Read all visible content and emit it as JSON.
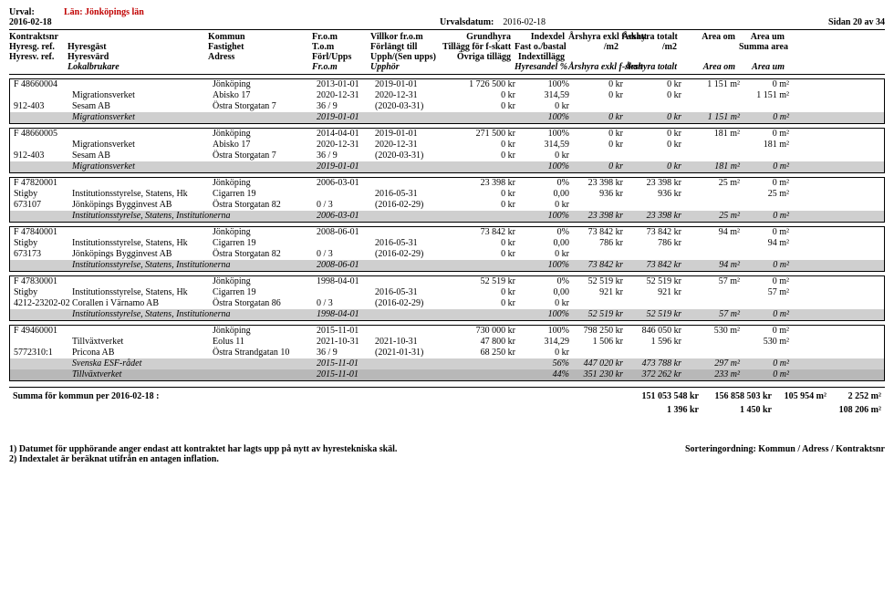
{
  "header": {
    "urval_label": "Urval:",
    "urval_value": "Län: Jönköpings län",
    "date": "2016-02-18",
    "urvalsdatum_label": "Urvalsdatum:",
    "urvalsdatum_value": "2016-02-18",
    "page": "Sidan 20 av 34",
    "cols": {
      "c1a": "Kontraktsnr",
      "c1b": "Hyresg. ref.",
      "c1c": "Hyresv. ref.",
      "c2a": "",
      "c2b": "Hyresgäst",
      "c2c": "Hyresvärd",
      "c2d": "Lokalbrukare",
      "c3a": "Kommun",
      "c3b": "Fastighet",
      "c3c": "Adress",
      "c4a": "Fr.o.m",
      "c4b": "T.o.m",
      "c4c": "Förl/Upps",
      "c4d": "Fr.o.m",
      "c5a": "Villkor fr.o.m",
      "c5b": "Förlängt till",
      "c5c": "Upph/(Sen upps)",
      "c5d": "Upphör",
      "c6a": "Grundhyra",
      "c6b": "Tillägg för f-skatt",
      "c6c": "Övriga tillägg",
      "c7a": "Indexdel",
      "c7b": "Fast o./bastal",
      "c7c": "Indextillägg",
      "c7d": "Hyresandel %",
      "c8a": "Årshyra exkl f-skatt",
      "c8b": "/m2",
      "c8d": "Årshyra exkl f-skatt",
      "c9a": "Årshyra totalt",
      "c9b": "/m2",
      "c9d": "Årshyra totalt",
      "c10a": "Area om",
      "c10d": "Area om",
      "c11a": "Area um",
      "c11b": "Summa area",
      "c11d": "Area um"
    }
  },
  "blocks": [
    {
      "rows": [
        [
          "F 48660004",
          "",
          "Jönköping",
          "2013-01-01",
          "2019-01-01",
          "1 726 500 kr",
          "100%",
          "0 kr",
          "0 kr",
          "1 151 m²",
          "0 m²"
        ],
        [
          "",
          "Migrationsverket",
          "Abisko 17",
          "2020-12-31",
          "2020-12-31",
          "0 kr",
          "314,59",
          "0 kr",
          "0 kr",
          "",
          "1 151 m²"
        ],
        [
          "912-403",
          "Sesam AB",
          "Östra Storgatan 7",
          "36 / 9",
          "(2020-03-31)",
          "0 kr",
          "0 kr",
          "",
          "",
          "",
          ""
        ]
      ],
      "summary": [
        "",
        "Migrationsverket",
        "",
        "2019-01-01",
        "",
        "",
        "100%",
        "0 kr",
        "0 kr",
        "1 151 m²",
        "0 m²"
      ]
    },
    {
      "rows": [
        [
          "F 48660005",
          "",
          "Jönköping",
          "2014-04-01",
          "2019-01-01",
          "271 500 kr",
          "100%",
          "0 kr",
          "0 kr",
          "181 m²",
          "0 m²"
        ],
        [
          "",
          "Migrationsverket",
          "Abisko 17",
          "2020-12-31",
          "2020-12-31",
          "0 kr",
          "314,59",
          "0 kr",
          "0 kr",
          "",
          "181 m²"
        ],
        [
          "912-403",
          "Sesam AB",
          "Östra Storgatan 7",
          "36 / 9",
          "(2020-03-31)",
          "0 kr",
          "0 kr",
          "",
          "",
          "",
          ""
        ]
      ],
      "summary": [
        "",
        "Migrationsverket",
        "",
        "2019-01-01",
        "",
        "",
        "100%",
        "0 kr",
        "0 kr",
        "181 m²",
        "0 m²"
      ]
    },
    {
      "rows": [
        [
          "F 47820001",
          "",
          "Jönköping",
          "2006-03-01",
          "",
          "23 398 kr",
          "0%",
          "23 398 kr",
          "23 398 kr",
          "25 m²",
          "0 m²"
        ],
        [
          "Stigby",
          "Institutionsstyrelse, Statens, Hk",
          "Cigarren 19",
          "",
          "2016-05-31",
          "0 kr",
          "0,00",
          "936 kr",
          "936 kr",
          "",
          "25 m²"
        ],
        [
          "673107",
          "Jönköpings Bygginvest AB",
          "Östra Storgatan 82",
          "0 / 3",
          "(2016-02-29)",
          "0 kr",
          "0 kr",
          "",
          "",
          "",
          ""
        ]
      ],
      "summary": [
        "",
        "Institutionsstyrelse, Statens, Institutionerna",
        "",
        "2006-03-01",
        "",
        "",
        "100%",
        "23 398 kr",
        "23 398 kr",
        "25 m²",
        "0 m²"
      ]
    },
    {
      "rows": [
        [
          "F 47840001",
          "",
          "Jönköping",
          "2008-06-01",
          "",
          "73 842 kr",
          "0%",
          "73 842 kr",
          "73 842 kr",
          "94 m²",
          "0 m²"
        ],
        [
          "Stigby",
          "Institutionsstyrelse, Statens, Hk",
          "Cigarren 19",
          "",
          "2016-05-31",
          "0 kr",
          "0,00",
          "786 kr",
          "786 kr",
          "",
          "94 m²"
        ],
        [
          "673173",
          "Jönköpings Bygginvest AB",
          "Östra Storgatan 82",
          "0 / 3",
          "(2016-02-29)",
          "0 kr",
          "0 kr",
          "",
          "",
          "",
          ""
        ]
      ],
      "summary": [
        "",
        "Institutionsstyrelse, Statens, Institutionerna",
        "",
        "2008-06-01",
        "",
        "",
        "100%",
        "73 842 kr",
        "73 842 kr",
        "94 m²",
        "0 m²"
      ]
    },
    {
      "rows": [
        [
          "F 47830001",
          "",
          "Jönköping",
          "1998-04-01",
          "",
          "52 519 kr",
          "0%",
          "52 519 kr",
          "52 519 kr",
          "57 m²",
          "0 m²"
        ],
        [
          "Stigby",
          "Institutionsstyrelse, Statens, Hk",
          "Cigarren 19",
          "",
          "2016-05-31",
          "0 kr",
          "0,00",
          "921 kr",
          "921 kr",
          "",
          "57 m²"
        ],
        [
          "4212-23202-02",
          "Corallen i Värnamo AB",
          "Östra Storgatan 86",
          "0 / 3",
          "(2016-02-29)",
          "0 kr",
          "0 kr",
          "",
          "",
          "",
          ""
        ]
      ],
      "summary": [
        "",
        "Institutionsstyrelse, Statens, Institutionerna",
        "",
        "1998-04-01",
        "",
        "",
        "100%",
        "52 519 kr",
        "52 519 kr",
        "57 m²",
        "0 m²"
      ]
    },
    {
      "rows": [
        [
          "F 49460001",
          "",
          "Jönköping",
          "2015-11-01",
          "",
          "730 000 kr",
          "100%",
          "798 250 kr",
          "846 050 kr",
          "530 m²",
          "0 m²"
        ],
        [
          "",
          "Tillväxtverket",
          "Eolus 11",
          "2021-10-31",
          "2021-10-31",
          "47 800 kr",
          "314,29",
          "1 506 kr",
          "1 596 kr",
          "",
          "530 m²"
        ],
        [
          "5772310:1",
          "Pricona AB",
          "Östra Strandgatan 10",
          "36 / 9",
          "(2021-01-31)",
          "68 250 kr",
          "0 kr",
          "",
          "",
          "",
          ""
        ]
      ],
      "summary": [
        "",
        "Svenska ESF-rådet",
        "",
        "2015-11-01",
        "",
        "",
        "56%",
        "447 020 kr",
        "473 788 kr",
        "297 m²",
        "0 m²"
      ],
      "summary2": [
        "",
        "Tillväxtverket",
        "",
        "2015-11-01",
        "",
        "",
        "44%",
        "351 230 kr",
        "372 262 kr",
        "233 m²",
        "0 m²"
      ]
    }
  ],
  "totals": {
    "label": "Summa för kommun per 2016-02-18 :",
    "line1": [
      "151 053 548 kr",
      "156 858 503 kr",
      "105 954 m²",
      "2 252 m²"
    ],
    "line2": [
      "1 396 kr",
      "1 450 kr",
      "",
      "108 206 m²"
    ]
  },
  "footer": {
    "note1": "1) Datumet för upphörande anger endast att kontraktet har lagts upp på nytt av hyrestekniska skäl.",
    "note2": "2) Indextalet är beräknat utifrån en antagen inflation.",
    "sort": "Sorteringordning: Kommun / Adress / Kontraktsnr"
  }
}
